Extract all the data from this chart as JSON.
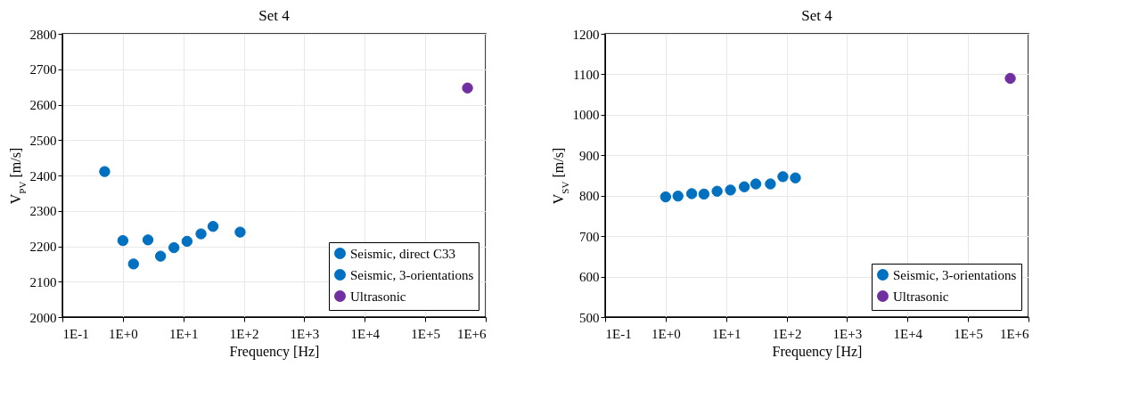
{
  "chart_data": [
    {
      "type": "scatter",
      "title": "Set 4",
      "xlabel": "Frequency [Hz]",
      "ylabel": "V$_{PV}$ [m/s]",
      "log": "x",
      "grid": true,
      "legend": "bottom right",
      "marker": "circle",
      "xlim": [
        0.1,
        1000000
      ],
      "xticks": [
        {
          "value": 0.1,
          "label": "1E-1"
        },
        {
          "value": 1,
          "label": "1E+0"
        },
        {
          "value": 10,
          "label": "1E+1"
        },
        {
          "value": 100,
          "label": "1E+2"
        },
        {
          "value": 1000,
          "label": "1E+3"
        },
        {
          "value": 10000,
          "label": "1E+4"
        },
        {
          "value": 100000,
          "label": "1E+5"
        },
        {
          "value": 1000000,
          "label": "1E+6"
        }
      ],
      "ylim": [
        2000,
        2800
      ],
      "yticks": [
        2000,
        2100,
        2200,
        2300,
        2400,
        2500,
        2600,
        2700,
        2800
      ],
      "series": [
        {
          "name": "Seismic, direct C33",
          "color": "#0070c0",
          "x": [
            0.5
          ],
          "values": [
            2411
          ]
        },
        {
          "name": "Seismic, 3-orientations",
          "color": "#0070c0",
          "x": [
            1.0,
            1.5,
            2.6,
            4.2,
            7.0,
            11.5,
            19.6,
            31,
            87
          ],
          "values": [
            2216,
            2150,
            2218,
            2172,
            2196,
            2214,
            2235,
            2256,
            2240
          ]
        },
        {
          "name": "Ultrasonic",
          "color": "#7030a0",
          "x": [
            500000
          ],
          "values": [
            2647
          ]
        }
      ]
    },
    {
      "type": "scatter",
      "title": "Set 4",
      "xlabel": "Frequency [Hz]",
      "ylabel": "V$_{SV}$ [m/s]",
      "log": "x",
      "grid": true,
      "legend": "bottom right",
      "marker": "circle",
      "xlim": [
        0.1,
        1000000
      ],
      "xticks": [
        {
          "value": 0.1,
          "label": "1E-1"
        },
        {
          "value": 1,
          "label": "1E+0"
        },
        {
          "value": 10,
          "label": "1E+1"
        },
        {
          "value": 100,
          "label": "1E+2"
        },
        {
          "value": 1000,
          "label": "1E+3"
        },
        {
          "value": 10000,
          "label": "1E+4"
        },
        {
          "value": 100000,
          "label": "1E+5"
        },
        {
          "value": 1000000,
          "label": "1E+6"
        }
      ],
      "ylim": [
        500,
        1200
      ],
      "yticks": [
        500,
        600,
        700,
        800,
        900,
        1000,
        1100,
        1200
      ],
      "series": [
        {
          "name": "Seismic, 3-orientations",
          "color": "#0070c0",
          "x": [
            1.0,
            1.6,
            2.7,
            4.3,
            7.1,
            11.8,
            20,
            31,
            54,
            87,
            140
          ],
          "values": [
            797,
            799,
            805,
            804,
            811,
            814,
            822,
            829,
            829,
            847,
            844
          ]
        },
        {
          "name": "Ultrasonic",
          "color": "#7030a0",
          "x": [
            500000
          ],
          "values": [
            1090
          ]
        }
      ]
    }
  ]
}
